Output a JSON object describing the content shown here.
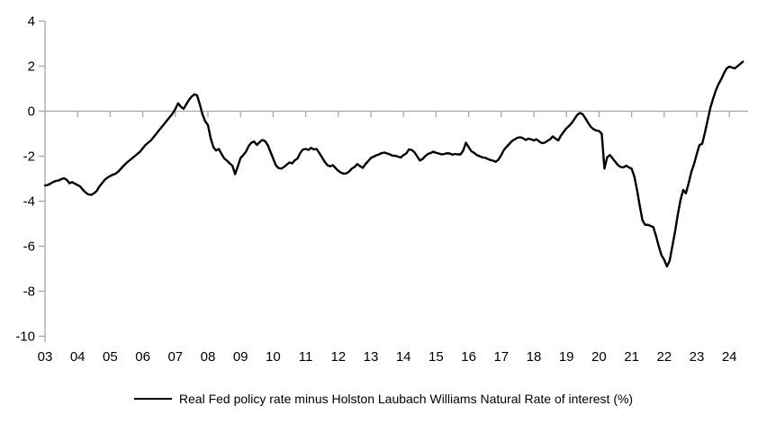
{
  "legend": {
    "label": "Real Fed policy rate minus Holston Laubach Williams Natural Rate of interest (%)"
  },
  "chart_data": {
    "type": "line",
    "title": "",
    "xlabel": "",
    "ylabel": "",
    "x_frequency": "monthly",
    "x_start": "2003-01",
    "x_end": "2024-06",
    "x_start_year": 2003,
    "x_tick_labels": [
      "03",
      "04",
      "05",
      "06",
      "07",
      "08",
      "09",
      "10",
      "11",
      "12",
      "13",
      "14",
      "15",
      "16",
      "17",
      "18",
      "19",
      "20",
      "21",
      "22",
      "23",
      "24"
    ],
    "y_tick_labels": [
      "4",
      "2",
      "0",
      "-2",
      "-4",
      "-6",
      "-8",
      "-10"
    ],
    "y_tick_values": [
      4,
      2,
      0,
      -2,
      -4,
      -6,
      -8,
      -10
    ],
    "ylim": [
      -10,
      4
    ],
    "grid": "zero-line-only",
    "zero_gridline": true,
    "legend_position": "bottom-center",
    "axis_color": "#a6a6a6",
    "text_color": "#000000",
    "background": "#ffffff",
    "series": [
      {
        "name": "Real Fed policy rate minus Holston Laubach Williams Natural Rate of interest (%)",
        "color": "#000000",
        "line_width": 2.4,
        "values": [
          -3.3,
          -3.28,
          -3.22,
          -3.15,
          -3.1,
          -3.08,
          -3.02,
          -2.98,
          -3.05,
          -3.2,
          -3.15,
          -3.22,
          -3.28,
          -3.35,
          -3.5,
          -3.62,
          -3.7,
          -3.72,
          -3.65,
          -3.55,
          -3.35,
          -3.2,
          -3.05,
          -2.95,
          -2.88,
          -2.82,
          -2.78,
          -2.68,
          -2.55,
          -2.42,
          -2.3,
          -2.2,
          -2.1,
          -2.0,
          -1.9,
          -1.8,
          -1.65,
          -1.5,
          -1.4,
          -1.3,
          -1.15,
          -1.0,
          -0.85,
          -0.7,
          -0.55,
          -0.4,
          -0.25,
          -0.1,
          0.1,
          0.35,
          0.2,
          0.1,
          0.3,
          0.5,
          0.65,
          0.75,
          0.7,
          0.3,
          -0.15,
          -0.45,
          -0.62,
          -1.2,
          -1.6,
          -1.75,
          -1.68,
          -1.9,
          -2.1,
          -2.2,
          -2.32,
          -2.42,
          -2.8,
          -2.45,
          -2.08,
          -1.95,
          -1.8,
          -1.55,
          -1.4,
          -1.35,
          -1.5,
          -1.38,
          -1.28,
          -1.33,
          -1.5,
          -1.8,
          -2.1,
          -2.4,
          -2.53,
          -2.55,
          -2.48,
          -2.38,
          -2.28,
          -2.32,
          -2.18,
          -2.1,
          -1.85,
          -1.7,
          -1.68,
          -1.72,
          -1.63,
          -1.7,
          -1.68,
          -1.86,
          -2.05,
          -2.25,
          -2.4,
          -2.45,
          -2.4,
          -2.53,
          -2.65,
          -2.73,
          -2.78,
          -2.76,
          -2.68,
          -2.55,
          -2.48,
          -2.35,
          -2.44,
          -2.52,
          -2.35,
          -2.22,
          -2.08,
          -2.02,
          -1.96,
          -1.92,
          -1.86,
          -1.84,
          -1.88,
          -1.92,
          -1.98,
          -1.98,
          -2.02,
          -2.06,
          -1.95,
          -1.88,
          -1.7,
          -1.72,
          -1.82,
          -2.0,
          -2.19,
          -2.13,
          -2.0,
          -1.9,
          -1.86,
          -1.8,
          -1.85,
          -1.88,
          -1.92,
          -1.9,
          -1.87,
          -1.88,
          -1.93,
          -1.9,
          -1.92,
          -1.92,
          -1.75,
          -1.4,
          -1.6,
          -1.78,
          -1.85,
          -1.95,
          -2.0,
          -2.05,
          -2.07,
          -2.12,
          -2.17,
          -2.2,
          -2.25,
          -2.15,
          -1.95,
          -1.72,
          -1.58,
          -1.45,
          -1.32,
          -1.25,
          -1.18,
          -1.16,
          -1.2,
          -1.28,
          -1.22,
          -1.25,
          -1.3,
          -1.25,
          -1.35,
          -1.42,
          -1.4,
          -1.32,
          -1.25,
          -1.12,
          -1.22,
          -1.3,
          -1.08,
          -0.92,
          -0.76,
          -0.65,
          -0.52,
          -0.34,
          -0.16,
          -0.08,
          -0.14,
          -0.32,
          -0.52,
          -0.7,
          -0.8,
          -0.86,
          -0.88,
          -1.0,
          -2.55,
          -2.05,
          -1.95,
          -2.1,
          -2.25,
          -2.4,
          -2.48,
          -2.5,
          -2.42,
          -2.5,
          -2.55,
          -2.9,
          -3.5,
          -4.2,
          -4.85,
          -5.05,
          -5.05,
          -5.1,
          -5.15,
          -5.55,
          -6.0,
          -6.4,
          -6.6,
          -6.9,
          -6.65,
          -6.0,
          -5.35,
          -4.6,
          -3.95,
          -3.5,
          -3.65,
          -3.2,
          -2.7,
          -2.35,
          -1.9,
          -1.5,
          -1.45,
          -0.95,
          -0.4,
          0.15,
          0.55,
          0.92,
          1.2,
          1.42,
          1.68,
          1.9,
          1.98,
          1.94,
          1.9,
          2.0,
          2.1,
          2.2
        ]
      }
    ]
  }
}
